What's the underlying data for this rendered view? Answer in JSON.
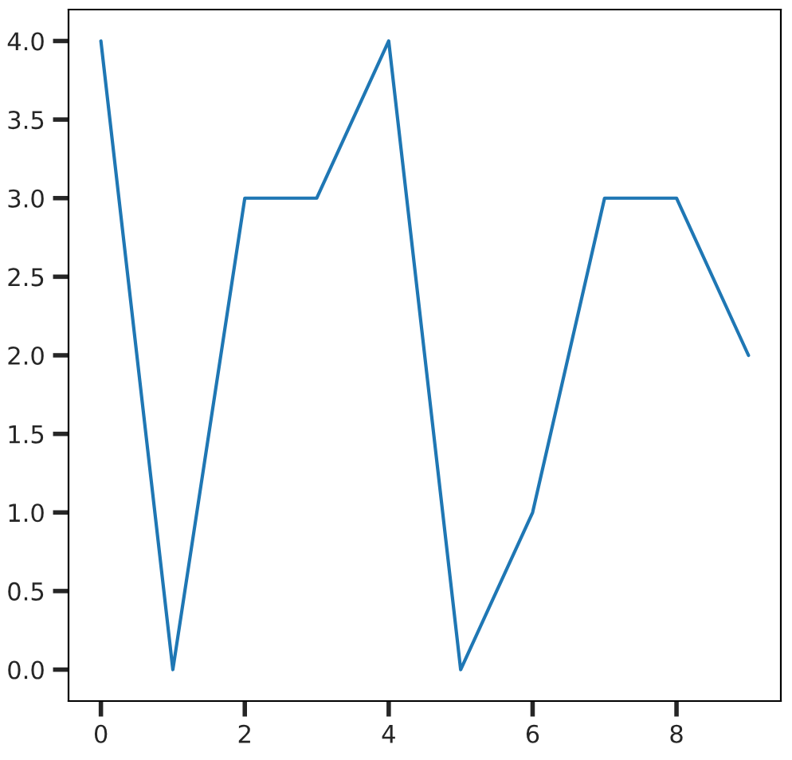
{
  "chart_data": {
    "type": "line",
    "x": [
      0,
      1,
      2,
      3,
      4,
      5,
      6,
      7,
      8,
      9
    ],
    "series": [
      {
        "color": "#1f77b4",
        "values": [
          4,
          0,
          3,
          3,
          4,
          0,
          1,
          3,
          3,
          2
        ]
      }
    ],
    "xlim": [
      -0.45,
      9.45
    ],
    "ylim": [
      -0.2,
      4.2
    ],
    "xticks": [
      0,
      2,
      4,
      6,
      8
    ],
    "yticks": [
      {
        "value": 0,
        "label": "0.0"
      },
      {
        "value": 0.5,
        "label": "0.5"
      },
      {
        "value": 1,
        "label": "1.0"
      },
      {
        "value": 1.5,
        "label": "1.5"
      },
      {
        "value": 2,
        "label": "2.0"
      },
      {
        "value": 2.5,
        "label": "2.5"
      },
      {
        "value": 3,
        "label": "3.0"
      },
      {
        "value": 3.5,
        "label": "3.5"
      },
      {
        "value": 4,
        "label": "4.0"
      }
    ],
    "grid": false
  }
}
